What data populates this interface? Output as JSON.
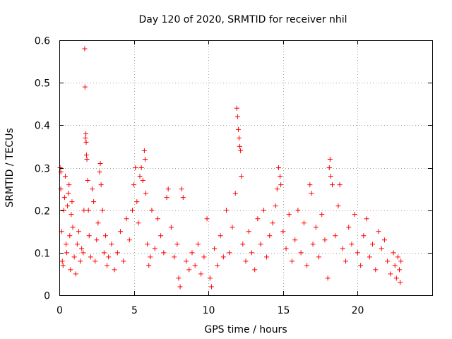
{
  "chart_data": {
    "type": "scatter",
    "title": "Day 120 of 2020, SRMTID for receiver nhil",
    "xlabel": "GPS time / hours",
    "ylabel": "SRMTID / TECUs",
    "xlim": [
      0,
      25
    ],
    "ylim": [
      0,
      0.6
    ],
    "x_ticks": [
      0,
      5,
      10,
      15,
      20
    ],
    "x_tick_labels": [
      "0",
      "5",
      "10",
      "15",
      "20"
    ],
    "y_ticks": [
      0,
      0.1,
      0.2,
      0.3,
      0.4,
      0.5,
      0.6
    ],
    "y_tick_labels": [
      "0",
      "0.1",
      "0.2",
      "0.3",
      "0.4",
      "0.5",
      "0.6"
    ],
    "grid": true,
    "marker": "plus",
    "color": "#ff0000",
    "series": [
      {
        "name": "SRMTID",
        "points": [
          [
            0.05,
            0.3
          ],
          [
            0.1,
            0.29
          ],
          [
            0.1,
            0.25
          ],
          [
            0.15,
            0.15
          ],
          [
            0.2,
            0.08
          ],
          [
            0.25,
            0.07
          ],
          [
            0.3,
            0.2
          ],
          [
            0.35,
            0.23
          ],
          [
            0.4,
            0.28
          ],
          [
            0.45,
            0.12
          ],
          [
            0.5,
            0.1
          ],
          [
            0.55,
            0.21
          ],
          [
            0.6,
            0.24
          ],
          [
            0.65,
            0.26
          ],
          [
            0.7,
            0.14
          ],
          [
            0.75,
            0.06
          ],
          [
            0.8,
            0.19
          ],
          [
            0.85,
            0.22
          ],
          [
            0.9,
            0.16
          ],
          [
            1.0,
            0.09
          ],
          [
            1.1,
            0.05
          ],
          [
            1.2,
            0.12
          ],
          [
            1.3,
            0.15
          ],
          [
            1.4,
            0.08
          ],
          [
            1.5,
            0.11
          ],
          [
            1.6,
            0.1
          ],
          [
            1.65,
            0.2
          ],
          [
            1.7,
            0.58
          ],
          [
            1.72,
            0.49
          ],
          [
            1.75,
            0.37
          ],
          [
            1.78,
            0.38
          ],
          [
            1.8,
            0.36
          ],
          [
            1.82,
            0.33
          ],
          [
            1.85,
            0.32
          ],
          [
            1.9,
            0.27
          ],
          [
            1.95,
            0.2
          ],
          [
            2.0,
            0.14
          ],
          [
            2.1,
            0.09
          ],
          [
            2.2,
            0.25
          ],
          [
            2.3,
            0.22
          ],
          [
            2.4,
            0.08
          ],
          [
            2.5,
            0.13
          ],
          [
            2.6,
            0.17
          ],
          [
            2.7,
            0.29
          ],
          [
            2.75,
            0.31
          ],
          [
            2.8,
            0.26
          ],
          [
            2.9,
            0.2
          ],
          [
            3.0,
            0.1
          ],
          [
            3.1,
            0.14
          ],
          [
            3.2,
            0.07
          ],
          [
            3.3,
            0.09
          ],
          [
            3.5,
            0.12
          ],
          [
            3.7,
            0.06
          ],
          [
            3.9,
            0.1
          ],
          [
            4.1,
            0.15
          ],
          [
            4.3,
            0.08
          ],
          [
            4.5,
            0.18
          ],
          [
            4.7,
            0.13
          ],
          [
            4.9,
            0.2
          ],
          [
            5.0,
            0.26
          ],
          [
            5.1,
            0.3
          ],
          [
            5.2,
            0.22
          ],
          [
            5.3,
            0.17
          ],
          [
            5.4,
            0.28
          ],
          [
            5.5,
            0.3
          ],
          [
            5.6,
            0.27
          ],
          [
            5.7,
            0.34
          ],
          [
            5.75,
            0.32
          ],
          [
            5.8,
            0.24
          ],
          [
            5.9,
            0.12
          ],
          [
            6.0,
            0.07
          ],
          [
            6.1,
            0.09
          ],
          [
            6.2,
            0.2
          ],
          [
            6.4,
            0.11
          ],
          [
            6.6,
            0.18
          ],
          [
            6.8,
            0.14
          ],
          [
            7.0,
            0.1
          ],
          [
            7.2,
            0.23
          ],
          [
            7.3,
            0.25
          ],
          [
            7.5,
            0.16
          ],
          [
            7.7,
            0.09
          ],
          [
            7.9,
            0.12
          ],
          [
            8.0,
            0.04
          ],
          [
            8.1,
            0.02
          ],
          [
            8.2,
            0.25
          ],
          [
            8.3,
            0.23
          ],
          [
            8.5,
            0.08
          ],
          [
            8.7,
            0.06
          ],
          [
            8.9,
            0.1
          ],
          [
            9.1,
            0.07
          ],
          [
            9.3,
            0.12
          ],
          [
            9.5,
            0.05
          ],
          [
            9.7,
            0.09
          ],
          [
            9.9,
            0.18
          ],
          [
            10.1,
            0.04
          ],
          [
            10.2,
            0.02
          ],
          [
            10.4,
            0.11
          ],
          [
            10.6,
            0.07
          ],
          [
            10.8,
            0.14
          ],
          [
            11.0,
            0.09
          ],
          [
            11.2,
            0.2
          ],
          [
            11.4,
            0.1
          ],
          [
            11.6,
            0.16
          ],
          [
            11.8,
            0.24
          ],
          [
            11.9,
            0.44
          ],
          [
            11.95,
            0.42
          ],
          [
            12.0,
            0.39
          ],
          [
            12.05,
            0.37
          ],
          [
            12.1,
            0.35
          ],
          [
            12.15,
            0.34
          ],
          [
            12.2,
            0.28
          ],
          [
            12.3,
            0.12
          ],
          [
            12.5,
            0.08
          ],
          [
            12.7,
            0.15
          ],
          [
            12.9,
            0.1
          ],
          [
            13.1,
            0.06
          ],
          [
            13.3,
            0.18
          ],
          [
            13.5,
            0.12
          ],
          [
            13.7,
            0.2
          ],
          [
            13.9,
            0.09
          ],
          [
            14.1,
            0.14
          ],
          [
            14.3,
            0.17
          ],
          [
            14.5,
            0.21
          ],
          [
            14.6,
            0.25
          ],
          [
            14.7,
            0.3
          ],
          [
            14.8,
            0.28
          ],
          [
            14.85,
            0.26
          ],
          [
            15.0,
            0.15
          ],
          [
            15.2,
            0.11
          ],
          [
            15.4,
            0.19
          ],
          [
            15.6,
            0.08
          ],
          [
            15.8,
            0.13
          ],
          [
            16.0,
            0.2
          ],
          [
            16.2,
            0.1
          ],
          [
            16.4,
            0.17
          ],
          [
            16.6,
            0.07
          ],
          [
            16.8,
            0.26
          ],
          [
            16.9,
            0.24
          ],
          [
            17.0,
            0.12
          ],
          [
            17.2,
            0.16
          ],
          [
            17.4,
            0.09
          ],
          [
            17.6,
            0.19
          ],
          [
            17.8,
            0.13
          ],
          [
            18.0,
            0.04
          ],
          [
            18.1,
            0.3
          ],
          [
            18.15,
            0.32
          ],
          [
            18.2,
            0.28
          ],
          [
            18.3,
            0.26
          ],
          [
            18.5,
            0.14
          ],
          [
            18.7,
            0.21
          ],
          [
            18.8,
            0.26
          ],
          [
            19.0,
            0.11
          ],
          [
            19.2,
            0.08
          ],
          [
            19.4,
            0.16
          ],
          [
            19.6,
            0.12
          ],
          [
            19.8,
            0.19
          ],
          [
            20.0,
            0.1
          ],
          [
            20.2,
            0.07
          ],
          [
            20.4,
            0.14
          ],
          [
            20.6,
            0.18
          ],
          [
            20.8,
            0.09
          ],
          [
            21.0,
            0.12
          ],
          [
            21.2,
            0.06
          ],
          [
            21.4,
            0.15
          ],
          [
            21.6,
            0.11
          ],
          [
            21.8,
            0.13
          ],
          [
            22.0,
            0.08
          ],
          [
            22.2,
            0.05
          ],
          [
            22.4,
            0.1
          ],
          [
            22.5,
            0.07
          ],
          [
            22.6,
            0.04
          ],
          [
            22.7,
            0.09
          ],
          [
            22.8,
            0.06
          ],
          [
            22.85,
            0.03
          ],
          [
            22.9,
            0.08
          ]
        ]
      }
    ]
  }
}
